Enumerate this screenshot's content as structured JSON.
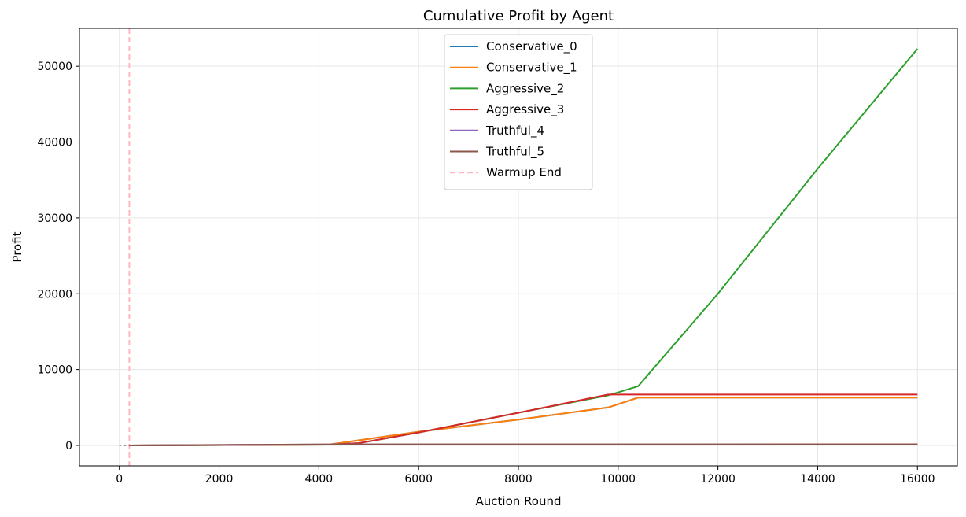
{
  "chart_data": {
    "type": "line",
    "title": "Cumulative Profit by Agent",
    "xlabel": "Auction Round",
    "ylabel": "Profit",
    "xlim": [
      -800,
      16800
    ],
    "ylim": [
      -2700,
      55000
    ],
    "xticks": [
      0,
      2000,
      4000,
      6000,
      8000,
      10000,
      12000,
      14000,
      16000
    ],
    "yticks": [
      0,
      10000,
      20000,
      30000,
      40000,
      50000
    ],
    "grid": true,
    "legend_position": "top-center",
    "warmup_end": 200,
    "series": [
      {
        "name": "Conservative_0",
        "color": "#1f77b4",
        "x": [
          200,
          4200,
          6000,
          8000,
          9800,
          10400,
          16000
        ],
        "y": [
          0,
          100,
          1800,
          3400,
          5000,
          6300,
          6300
        ]
      },
      {
        "name": "Conservative_1",
        "color": "#ff7f0e",
        "x": [
          200,
          4200,
          6000,
          8000,
          9800,
          10400,
          16000
        ],
        "y": [
          0,
          100,
          1800,
          3400,
          5000,
          6300,
          6300
        ]
      },
      {
        "name": "Aggressive_2",
        "color": "#2ca02c",
        "x": [
          200,
          4200,
          4800,
          6000,
          8000,
          9800,
          10400,
          12000,
          14000,
          16000
        ],
        "y": [
          0,
          100,
          300,
          1700,
          4300,
          6600,
          7800,
          20000,
          36500,
          52300
        ]
      },
      {
        "name": "Aggressive_3",
        "color": "#d62728",
        "x": [
          200,
          4200,
          4800,
          6000,
          8000,
          9800,
          16000
        ],
        "y": [
          0,
          100,
          300,
          1700,
          4300,
          6700,
          6700
        ]
      },
      {
        "name": "Truthful_4",
        "color": "#9467bd",
        "x": [
          200,
          4000,
          16000
        ],
        "y": [
          0,
          130,
          150
        ]
      },
      {
        "name": "Truthful_5",
        "color": "#8c564b",
        "x": [
          200,
          4000,
          16000
        ],
        "y": [
          0,
          130,
          150
        ]
      }
    ],
    "warmup_series": {
      "name": "Warmup End",
      "color": "#ffb6c1"
    }
  }
}
